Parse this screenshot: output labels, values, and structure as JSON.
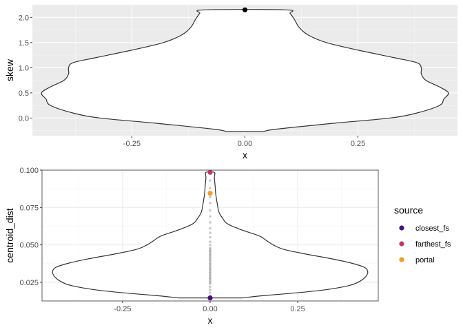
{
  "chart_data": [
    {
      "type": "violin",
      "panel": "top",
      "xlabel": "x",
      "ylabel": "skew",
      "xlim": [
        -0.47,
        0.47
      ],
      "ylim": [
        -0.35,
        2.25
      ],
      "x_ticks": [
        -0.25,
        0.0,
        0.25
      ],
      "x_tick_labels": [
        "-0.25",
        "0.00",
        "0.25"
      ],
      "y_ticks": [
        0.0,
        0.5,
        1.0,
        1.5,
        2.0
      ],
      "y_tick_labels": [
        "0.0",
        "0.5",
        "1.0",
        "1.5",
        "2.0"
      ],
      "grid": true,
      "theme": "grey-background",
      "violin_halfwidth": [
        {
          "y": -0.27,
          "w": 0.04
        },
        {
          "y": -0.22,
          "w": 0.07
        },
        {
          "y": -0.1,
          "w": 0.2
        },
        {
          "y": 0.0,
          "w": 0.32
        },
        {
          "y": 0.1,
          "w": 0.38
        },
        {
          "y": 0.25,
          "w": 0.43
        },
        {
          "y": 0.38,
          "w": 0.44
        },
        {
          "y": 0.5,
          "w": 0.45
        },
        {
          "y": 0.62,
          "w": 0.43
        },
        {
          "y": 0.75,
          "w": 0.4
        },
        {
          "y": 0.88,
          "w": 0.39
        },
        {
          "y": 1.0,
          "w": 0.39
        },
        {
          "y": 1.1,
          "w": 0.38
        },
        {
          "y": 1.2,
          "w": 0.33
        },
        {
          "y": 1.35,
          "w": 0.25
        },
        {
          "y": 1.5,
          "w": 0.18
        },
        {
          "y": 1.65,
          "w": 0.14
        },
        {
          "y": 1.8,
          "w": 0.12
        },
        {
          "y": 1.95,
          "w": 0.11
        },
        {
          "y": 2.08,
          "w": 0.1
        },
        {
          "y": 2.15,
          "w": 0.09
        }
      ],
      "points": [
        {
          "x": 0.0,
          "y": 2.15,
          "color": "#000000"
        }
      ]
    },
    {
      "type": "violin",
      "panel": "bottom",
      "xlabel": "x",
      "ylabel": "centroid_dist",
      "xlim": [
        -0.48,
        0.48
      ],
      "ylim": [
        0.0125,
        0.1
      ],
      "x_ticks": [
        -0.25,
        0.0,
        0.25
      ],
      "x_tick_labels": [
        "-0.25",
        "0.00",
        "0.25"
      ],
      "y_ticks": [
        0.025,
        0.05,
        0.075,
        0.1
      ],
      "y_tick_labels": [
        "0.025",
        "0.050",
        "0.075",
        "0.100"
      ],
      "grid": true,
      "theme": "bw",
      "violin_halfwidth": [
        {
          "y": 0.0145,
          "w": 0.09
        },
        {
          "y": 0.016,
          "w": 0.15
        },
        {
          "y": 0.018,
          "w": 0.25
        },
        {
          "y": 0.02,
          "w": 0.33
        },
        {
          "y": 0.023,
          "w": 0.4
        },
        {
          "y": 0.026,
          "w": 0.43
        },
        {
          "y": 0.029,
          "w": 0.445
        },
        {
          "y": 0.032,
          "w": 0.45
        },
        {
          "y": 0.035,
          "w": 0.44
        },
        {
          "y": 0.038,
          "w": 0.4
        },
        {
          "y": 0.041,
          "w": 0.34
        },
        {
          "y": 0.044,
          "w": 0.27
        },
        {
          "y": 0.047,
          "w": 0.21
        },
        {
          "y": 0.05,
          "w": 0.18
        },
        {
          "y": 0.053,
          "w": 0.16
        },
        {
          "y": 0.056,
          "w": 0.14
        },
        {
          "y": 0.06,
          "w": 0.09
        },
        {
          "y": 0.064,
          "w": 0.05
        },
        {
          "y": 0.068,
          "w": 0.035
        },
        {
          "y": 0.072,
          "w": 0.025
        },
        {
          "y": 0.078,
          "w": 0.02
        },
        {
          "y": 0.084,
          "w": 0.016
        },
        {
          "y": 0.09,
          "w": 0.014
        },
        {
          "y": 0.095,
          "w": 0.012
        },
        {
          "y": 0.0985,
          "w": 0.012
        }
      ],
      "jitter_points": [
        0.016,
        0.018,
        0.02,
        0.022,
        0.024,
        0.025,
        0.026,
        0.027,
        0.028,
        0.029,
        0.03,
        0.031,
        0.032,
        0.033,
        0.034,
        0.035,
        0.036,
        0.037,
        0.038,
        0.039,
        0.04,
        0.041,
        0.042,
        0.043,
        0.044,
        0.045,
        0.046,
        0.047,
        0.048,
        0.05,
        0.052,
        0.055,
        0.058,
        0.061,
        0.065,
        0.069,
        0.073,
        0.078,
        0.082,
        0.088,
        0.093
      ],
      "jitter_color": "#4d4d4d",
      "points": [
        {
          "x": 0.0,
          "y": 0.0985,
          "color": "#C33764",
          "series": "farthest_fs"
        },
        {
          "x": 0.0,
          "y": 0.0845,
          "color": "#F39C2B",
          "series": "portal"
        },
        {
          "x": 0.0,
          "y": 0.0145,
          "color": "#4B0F82",
          "series": "closest_fs"
        }
      ],
      "legend": {
        "title": "source",
        "position": "right",
        "entries": [
          {
            "label": "closest_fs",
            "color": "#4B0F82"
          },
          {
            "label": "farthest_fs",
            "color": "#C33764"
          },
          {
            "label": "portal",
            "color": "#F39C2B"
          }
        ]
      }
    }
  ]
}
